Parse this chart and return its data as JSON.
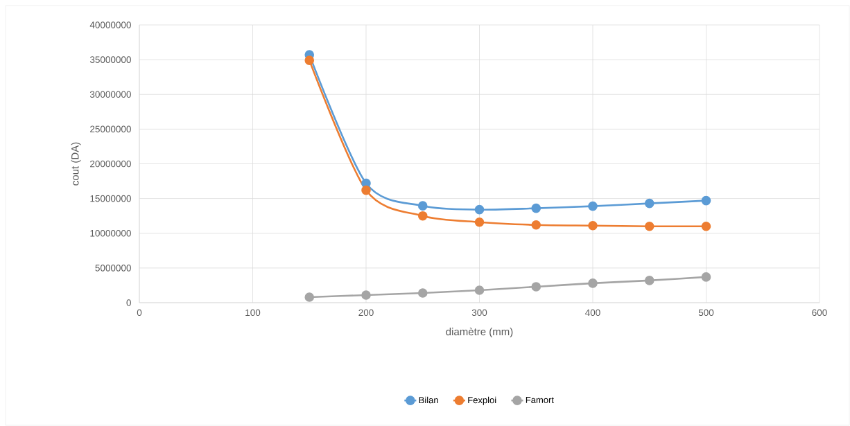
{
  "chart_data": {
    "type": "line",
    "xlabel": "diamètre (mm)",
    "ylabel": "cout (DA)",
    "x": [
      150,
      200,
      250,
      300,
      350,
      400,
      450,
      500
    ],
    "series": [
      {
        "name": "Bilan",
        "color": "#5b9bd5",
        "values": [
          35700000,
          17200000,
          13950000,
          13400000,
          13600000,
          13900000,
          14300000,
          14700000
        ]
      },
      {
        "name": "Fexploi",
        "color": "#ed7d31",
        "values": [
          34900000,
          16200000,
          12500000,
          11600000,
          11200000,
          11100000,
          11000000,
          11000000
        ]
      },
      {
        "name": "Famort",
        "color": "#a5a5a5",
        "values": [
          800000,
          1100000,
          1400000,
          1800000,
          2300000,
          2800000,
          3200000,
          3700000
        ]
      }
    ],
    "xlim": [
      0,
      600
    ],
    "xticks": [
      0,
      100,
      200,
      300,
      400,
      500,
      600
    ],
    "ylim": [
      0,
      40000000
    ],
    "yticks": [
      0,
      5000000,
      10000000,
      15000000,
      20000000,
      25000000,
      30000000,
      35000000,
      40000000
    ],
    "grid": true,
    "legend": "bottom",
    "marker": "circle",
    "line_style": "solid"
  }
}
